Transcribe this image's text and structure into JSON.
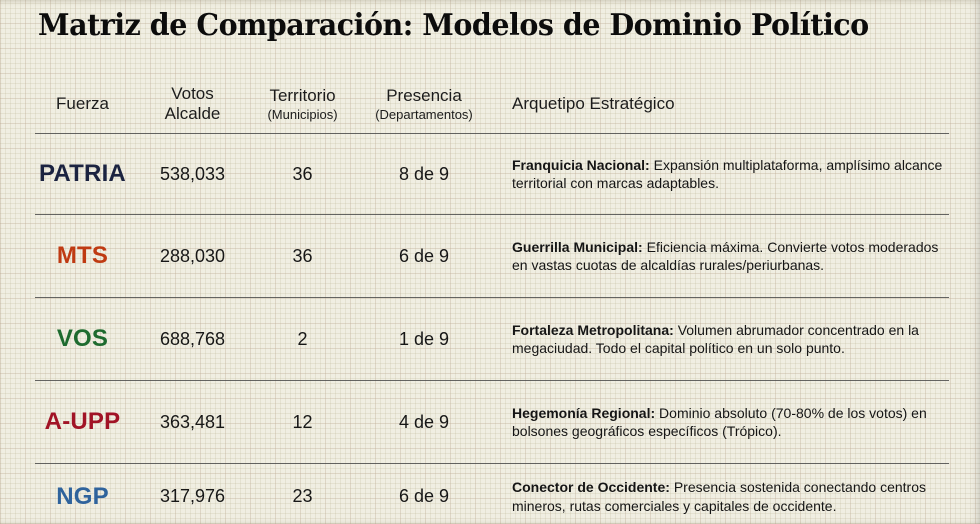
{
  "title": "Matriz de Comparación: Modelos de Dominio Político",
  "table": {
    "headers": {
      "fuerza": "Fuerza",
      "votos_line1": "Votos",
      "votos_line2": "Alcalde",
      "territorio": "Territorio",
      "territorio_sub": "(Municipios)",
      "presencia": "Presencia",
      "presencia_sub": "(Departamentos)",
      "arquetipo": "Arquetipo Estratégico"
    },
    "rows": [
      {
        "fuerza": "PATRIA",
        "color": "#1b2340",
        "votos": "538,033",
        "territorio": "36",
        "presencia": "8 de 9",
        "arquetipo_label": "Franquicia Nacional:",
        "arquetipo_text": "Expansión multiplataforma, amplísimo alcance territorial con marcas adaptables."
      },
      {
        "fuerza": "MTS",
        "color": "#bf3a12",
        "votos": "288,030",
        "territorio": "36",
        "presencia": "6 de 9",
        "arquetipo_label": "Guerrilla Municipal:",
        "arquetipo_text": "Eficiencia máxima. Convierte votos moderados en vastas cuotas de alcaldías rurales/periurbanas."
      },
      {
        "fuerza": "VOS",
        "color": "#1e6b2f",
        "votos": "688,768",
        "territorio": "2",
        "presencia": "1 de 9",
        "arquetipo_label": "Fortaleza Metropolitana:",
        "arquetipo_text": "Volumen abrumador concentrado en la megaciudad. Todo el capital político en un solo punto."
      },
      {
        "fuerza": "A-UPP",
        "color": "#a11326",
        "votos": "363,481",
        "territorio": "12",
        "presencia": "4 de 9",
        "arquetipo_label": "Hegemonía Regional:",
        "arquetipo_text": "Dominio absoluto (70-80% de los votos) en bolsones geográficos específicos (Trópico)."
      },
      {
        "fuerza": "NGP",
        "color": "#2f639c",
        "votos": "317,976",
        "territorio": "23",
        "presencia": "6 de 9",
        "arquetipo_label": "Conector de Occidente:",
        "arquetipo_text": "Presencia sostenida conectando centros mineros, rutas comerciales y capitales de occidente."
      }
    ]
  },
  "chart_data": {
    "type": "table",
    "title": "Matriz de Comparación: Modelos de Dominio Político",
    "columns": [
      "Fuerza",
      "Votos Alcalde",
      "Territorio (Municipios)",
      "Presencia (Departamentos)",
      "Arquetipo Estratégico"
    ],
    "rows": [
      [
        "PATRIA",
        538033,
        36,
        "8 de 9",
        "Franquicia Nacional: Expansión multiplataforma, amplísimo alcance territorial con marcas adaptables."
      ],
      [
        "MTS",
        288030,
        36,
        "6 de 9",
        "Guerrilla Municipal: Eficiencia máxima. Convierte votos moderados en vastas cuotas de alcaldías rurales/periurbanas."
      ],
      [
        "VOS",
        688768,
        2,
        "1 de 9",
        "Fortaleza Metropolitana: Volumen abrumador concentrado en la megaciudad. Todo el capital político en un solo punto."
      ],
      [
        "A-UPP",
        363481,
        12,
        "4 de 9",
        "Hegemonía Regional: Dominio absoluto (70-80% de los votos) en bolsones geográficos específicos (Trópico)."
      ],
      [
        "NGP",
        317976,
        23,
        "6 de 9",
        "Conector de Occidente: Presencia sostenida conectando centros mineros, rutas comerciales y capitales de occidente."
      ]
    ],
    "row_colors": [
      "#1b2340",
      "#bf3a12",
      "#1e6b2f",
      "#a11326",
      "#2f639c"
    ],
    "background": "#f0eee2",
    "grid": true
  }
}
